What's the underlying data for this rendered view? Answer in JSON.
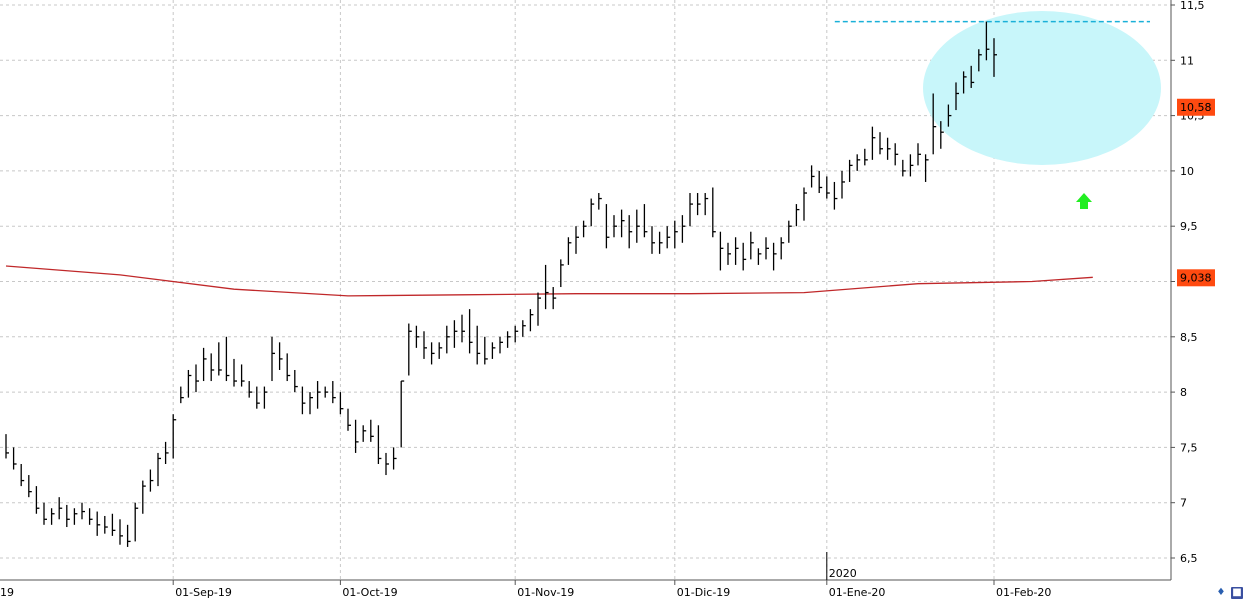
{
  "colors": {
    "bars": "#000000",
    "moving_average": "#c0282a",
    "badge_bg": "#ff4a10",
    "highlight_fill": "#c8f6fa",
    "resistance_line": "#1ab0d8",
    "arrow": "#22ee22",
    "grid": "#c8c8c8"
  },
  "icons": [
    "chart-settings-icon",
    "save-icon"
  ],
  "chart_data": {
    "type": "ohlc",
    "ylim": [
      6.4,
      11.55
    ],
    "y_ticks": [
      "6,5",
      "7",
      "7,5",
      "8",
      "8,5",
      "9",
      "9,5",
      "10",
      "10,5",
      "11",
      "11,5"
    ],
    "y_tick_values": [
      6.5,
      7,
      7.5,
      8,
      8.5,
      9,
      9.5,
      10,
      10.5,
      11,
      11.5
    ],
    "x_tick_labels": [
      "19",
      "01-Sep-19",
      "01-Oct-19",
      "01-Nov-19",
      "01-Dic-19",
      "01-Ene-20",
      "01-Feb-20"
    ],
    "x_tick_bar_index": [
      0,
      22,
      44,
      67,
      88,
      108,
      130
    ],
    "year_label": "2020",
    "year_bar_index": 108,
    "price_badge": "10,58",
    "price_value": 10.58,
    "ma_badge": "9,038",
    "ma_value": 9.038,
    "moving_average": {
      "bar_index": [
        0,
        15,
        30,
        45,
        60,
        75,
        90,
        105,
        120,
        135,
        143
      ],
      "values": [
        9.14,
        9.06,
        8.93,
        8.87,
        8.88,
        8.89,
        8.89,
        8.9,
        8.98,
        9.0,
        9.038
      ]
    },
    "resistance_level": 11.35,
    "resistance_from_bar": 113,
    "bars": [
      {
        "h": 7.62,
        "l": 7.4,
        "c": 7.45
      },
      {
        "h": 7.5,
        "l": 7.3,
        "c": 7.35
      },
      {
        "h": 7.35,
        "l": 7.15,
        "c": 7.2
      },
      {
        "h": 7.25,
        "l": 7.05,
        "c": 7.1
      },
      {
        "h": 7.15,
        "l": 6.9,
        "c": 6.95
      },
      {
        "h": 7.0,
        "l": 6.8,
        "c": 6.85
      },
      {
        "h": 6.95,
        "l": 6.8,
        "c": 6.9
      },
      {
        "h": 7.05,
        "l": 6.85,
        "c": 6.95
      },
      {
        "h": 6.98,
        "l": 6.78,
        "c": 6.85
      },
      {
        "h": 6.95,
        "l": 6.8,
        "c": 6.9
      },
      {
        "h": 7.0,
        "l": 6.85,
        "c": 6.92
      },
      {
        "h": 6.95,
        "l": 6.8,
        "c": 6.85
      },
      {
        "h": 6.92,
        "l": 6.7,
        "c": 6.8
      },
      {
        "h": 6.88,
        "l": 6.72,
        "c": 6.78
      },
      {
        "h": 6.9,
        "l": 6.7,
        "c": 6.75
      },
      {
        "h": 6.85,
        "l": 6.62,
        "c": 6.7
      },
      {
        "h": 6.8,
        "l": 6.6,
        "c": 6.65
      },
      {
        "h": 7.0,
        "l": 6.65,
        "c": 6.95
      },
      {
        "h": 7.2,
        "l": 6.9,
        "c": 7.15
      },
      {
        "h": 7.3,
        "l": 7.1,
        "c": 7.2
      },
      {
        "h": 7.45,
        "l": 7.15,
        "c": 7.4
      },
      {
        "h": 7.55,
        "l": 7.35,
        "c": 7.45
      },
      {
        "h": 7.8,
        "l": 7.4,
        "c": 7.75
      },
      {
        "h": 8.05,
        "l": 7.9,
        "c": 7.95
      },
      {
        "h": 8.2,
        "l": 7.95,
        "c": 8.15
      },
      {
        "h": 8.25,
        "l": 8.0,
        "c": 8.1
      },
      {
        "h": 8.4,
        "l": 8.1,
        "c": 8.3
      },
      {
        "h": 8.35,
        "l": 8.1,
        "c": 8.2
      },
      {
        "h": 8.45,
        "l": 8.15,
        "c": 8.2
      },
      {
        "h": 8.5,
        "l": 8.1,
        "c": 8.15
      },
      {
        "h": 8.3,
        "l": 8.05,
        "c": 8.1
      },
      {
        "h": 8.25,
        "l": 8.05,
        "c": 8.1
      },
      {
        "h": 8.1,
        "l": 7.95,
        "c": 8.0
      },
      {
        "h": 8.05,
        "l": 7.85,
        "c": 7.9
      },
      {
        "h": 8.05,
        "l": 7.85,
        "c": 8.0
      },
      {
        "h": 8.5,
        "l": 8.1,
        "c": 8.35
      },
      {
        "h": 8.45,
        "l": 8.2,
        "c": 8.3
      },
      {
        "h": 8.35,
        "l": 8.1,
        "c": 8.15
      },
      {
        "h": 8.2,
        "l": 8.0,
        "c": 8.05
      },
      {
        "h": 8.05,
        "l": 7.8,
        "c": 7.9
      },
      {
        "h": 8.0,
        "l": 7.8,
        "c": 7.95
      },
      {
        "h": 8.1,
        "l": 7.85,
        "c": 8.0
      },
      {
        "h": 8.05,
        "l": 7.95,
        "c": 8.0
      },
      {
        "h": 8.1,
        "l": 7.9,
        "c": 7.95
      },
      {
        "h": 8.0,
        "l": 7.8,
        "c": 7.85
      },
      {
        "h": 7.85,
        "l": 7.65,
        "c": 7.7
      },
      {
        "h": 7.75,
        "l": 7.45,
        "c": 7.55
      },
      {
        "h": 7.7,
        "l": 7.55,
        "c": 7.65
      },
      {
        "h": 7.75,
        "l": 7.55,
        "c": 7.6
      },
      {
        "h": 7.7,
        "l": 7.35,
        "c": 7.4
      },
      {
        "h": 7.45,
        "l": 7.25,
        "c": 7.35
      },
      {
        "h": 7.5,
        "l": 7.3,
        "c": 7.4
      },
      {
        "h": 8.1,
        "l": 7.5,
        "c": 8.1
      },
      {
        "h": 8.62,
        "l": 8.15,
        "c": 8.55
      },
      {
        "h": 8.6,
        "l": 8.4,
        "c": 8.5
      },
      {
        "h": 8.55,
        "l": 8.3,
        "c": 8.4
      },
      {
        "h": 8.45,
        "l": 8.25,
        "c": 8.35
      },
      {
        "h": 8.45,
        "l": 8.3,
        "c": 8.4
      },
      {
        "h": 8.6,
        "l": 8.35,
        "c": 8.5
      },
      {
        "h": 8.65,
        "l": 8.4,
        "c": 8.55
      },
      {
        "h": 8.7,
        "l": 8.45,
        "c": 8.55
      },
      {
        "h": 8.75,
        "l": 8.35,
        "c": 8.45
      },
      {
        "h": 8.6,
        "l": 8.25,
        "c": 8.35
      },
      {
        "h": 8.5,
        "l": 8.25,
        "c": 8.3
      },
      {
        "h": 8.45,
        "l": 8.3,
        "c": 8.4
      },
      {
        "h": 8.5,
        "l": 8.35,
        "c": 8.45
      },
      {
        "h": 8.55,
        "l": 8.4,
        "c": 8.5
      },
      {
        "h": 8.6,
        "l": 8.45,
        "c": 8.55
      },
      {
        "h": 8.65,
        "l": 8.5,
        "c": 8.6
      },
      {
        "h": 8.75,
        "l": 8.55,
        "c": 8.7
      },
      {
        "h": 8.9,
        "l": 8.6,
        "c": 8.85
      },
      {
        "h": 9.15,
        "l": 8.75,
        "c": 8.9
      },
      {
        "h": 8.95,
        "l": 8.75,
        "c": 8.85
      },
      {
        "h": 9.2,
        "l": 8.95,
        "c": 9.15
      },
      {
        "h": 9.4,
        "l": 9.15,
        "c": 9.35
      },
      {
        "h": 9.5,
        "l": 9.25,
        "c": 9.4
      },
      {
        "h": 9.55,
        "l": 9.4,
        "c": 9.5
      },
      {
        "h": 9.75,
        "l": 9.5,
        "c": 9.7
      },
      {
        "h": 9.8,
        "l": 9.65,
        "c": 9.75
      },
      {
        "h": 9.7,
        "l": 9.3,
        "c": 9.4
      },
      {
        "h": 9.6,
        "l": 9.4,
        "c": 9.5
      },
      {
        "h": 9.65,
        "l": 9.4,
        "c": 9.55
      },
      {
        "h": 9.6,
        "l": 9.3,
        "c": 9.45
      },
      {
        "h": 9.65,
        "l": 9.35,
        "c": 9.5
      },
      {
        "h": 9.7,
        "l": 9.4,
        "c": 9.45
      },
      {
        "h": 9.5,
        "l": 9.25,
        "c": 9.35
      },
      {
        "h": 9.45,
        "l": 9.25,
        "c": 9.35
      },
      {
        "h": 9.5,
        "l": 9.3,
        "c": 9.4
      },
      {
        "h": 9.55,
        "l": 9.3,
        "c": 9.45
      },
      {
        "h": 9.6,
        "l": 9.35,
        "c": 9.5
      },
      {
        "h": 9.8,
        "l": 9.5,
        "c": 9.7
      },
      {
        "h": 9.8,
        "l": 9.6,
        "c": 9.7
      },
      {
        "h": 9.8,
        "l": 9.6,
        "c": 9.75
      },
      {
        "h": 9.85,
        "l": 9.4,
        "c": 9.45
      },
      {
        "h": 9.45,
        "l": 9.1,
        "c": 9.3
      },
      {
        "h": 9.35,
        "l": 9.15,
        "c": 9.25
      },
      {
        "h": 9.4,
        "l": 9.15,
        "c": 9.3
      },
      {
        "h": 9.35,
        "l": 9.1,
        "c": 9.2
      },
      {
        "h": 9.45,
        "l": 9.2,
        "c": 9.35
      },
      {
        "h": 9.3,
        "l": 9.15,
        "c": 9.25
      },
      {
        "h": 9.4,
        "l": 9.2,
        "c": 9.3
      },
      {
        "h": 9.35,
        "l": 9.1,
        "c": 9.25
      },
      {
        "h": 9.4,
        "l": 9.2,
        "c": 9.35
      },
      {
        "h": 9.55,
        "l": 9.35,
        "c": 9.5
      },
      {
        "h": 9.7,
        "l": 9.5,
        "c": 9.65
      },
      {
        "h": 9.85,
        "l": 9.55,
        "c": 9.8
      },
      {
        "h": 10.05,
        "l": 9.85,
        "c": 9.95
      },
      {
        "h": 10.0,
        "l": 9.8,
        "c": 9.85
      },
      {
        "h": 9.95,
        "l": 9.75,
        "c": 9.8
      },
      {
        "h": 9.9,
        "l": 9.65,
        "c": 9.75
      },
      {
        "h": 10.0,
        "l": 9.75,
        "c": 9.9
      },
      {
        "h": 10.1,
        "l": 9.9,
        "c": 10.05
      },
      {
        "h": 10.15,
        "l": 10.0,
        "c": 10.1
      },
      {
        "h": 10.2,
        "l": 10.05,
        "c": 10.1
      },
      {
        "h": 10.4,
        "l": 10.1,
        "c": 10.3
      },
      {
        "h": 10.35,
        "l": 10.15,
        "c": 10.2
      },
      {
        "h": 10.3,
        "l": 10.1,
        "c": 10.2
      },
      {
        "h": 10.25,
        "l": 10.05,
        "c": 10.15
      },
      {
        "h": 10.1,
        "l": 9.95,
        "c": 10.0
      },
      {
        "h": 10.15,
        "l": 9.95,
        "c": 10.05
      },
      {
        "h": 10.25,
        "l": 10.05,
        "c": 10.15
      },
      {
        "h": 10.15,
        "l": 9.9,
        "c": 10.1
      },
      {
        "h": 10.7,
        "l": 10.15,
        "c": 10.4
      },
      {
        "h": 10.45,
        "l": 10.2,
        "c": 10.35
      },
      {
        "h": 10.6,
        "l": 10.4,
        "c": 10.5
      },
      {
        "h": 10.8,
        "l": 10.55,
        "c": 10.7
      },
      {
        "h": 10.9,
        "l": 10.7,
        "c": 10.85
      },
      {
        "h": 10.95,
        "l": 10.75,
        "c": 10.8
      },
      {
        "h": 11.1,
        "l": 10.9,
        "c": 11.05
      },
      {
        "h": 11.35,
        "l": 11.0,
        "c": 11.1
      },
      {
        "h": 11.2,
        "l": 10.85,
        "c": 11.05
      }
    ]
  }
}
